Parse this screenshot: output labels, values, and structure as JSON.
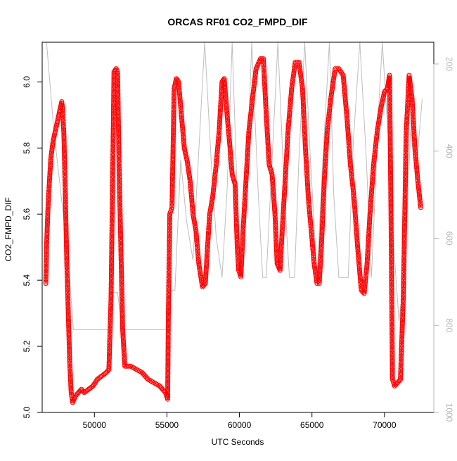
{
  "chart_data": {
    "type": "scatter",
    "title": "ORCAS RF01 CO2_FMPD_DIF",
    "xlabel": "UTC Seconds",
    "ylabel": "CO2_FMPD_DIF",
    "xlim": [
      46400,
      73400
    ],
    "ylim": [
      5.0,
      6.12
    ],
    "y2lim": [
      1000,
      150
    ],
    "x_ticks": [
      50000,
      55000,
      60000,
      65000,
      70000
    ],
    "y_ticks": [
      5.0,
      5.2,
      5.4,
      5.6,
      5.8,
      6.0
    ],
    "y2_ticks": [
      200,
      400,
      600,
      800,
      1000
    ],
    "grid": false,
    "series": [
      {
        "role": "CO2_FMPD_DIF",
        "color": "#ff0000",
        "marker": "open-circle",
        "line": "dash",
        "points": [
          [
            46650,
            5.39
          ],
          [
            46700,
            5.5
          ],
          [
            46800,
            5.62
          ],
          [
            46900,
            5.7
          ],
          [
            47000,
            5.77
          ],
          [
            47150,
            5.82
          ],
          [
            47300,
            5.85
          ],
          [
            47450,
            5.88
          ],
          [
            47600,
            5.91
          ],
          [
            47750,
            5.94
          ],
          [
            47800,
            5.92
          ],
          [
            47900,
            5.84
          ],
          [
            48000,
            5.65
          ],
          [
            48100,
            5.45
          ],
          [
            48200,
            5.3
          ],
          [
            48300,
            5.15
          ],
          [
            48400,
            5.06
          ],
          [
            48500,
            5.03
          ],
          [
            48700,
            5.05
          ],
          [
            48900,
            5.06
          ],
          [
            49100,
            5.07
          ],
          [
            49300,
            5.06
          ],
          [
            49600,
            5.07
          ],
          [
            49900,
            5.08
          ],
          [
            50200,
            5.1
          ],
          [
            50500,
            5.11
          ],
          [
            50800,
            5.12
          ],
          [
            51000,
            5.13
          ],
          [
            51150,
            5.35
          ],
          [
            51300,
            5.85
          ],
          [
            51350,
            6.03
          ],
          [
            51500,
            6.04
          ],
          [
            51600,
            6.03
          ],
          [
            51700,
            5.75
          ],
          [
            51850,
            5.45
          ],
          [
            51950,
            5.25
          ],
          [
            52100,
            5.14
          ],
          [
            52500,
            5.14
          ],
          [
            52900,
            5.13
          ],
          [
            53300,
            5.12
          ],
          [
            53700,
            5.1
          ],
          [
            54100,
            5.09
          ],
          [
            54500,
            5.08
          ],
          [
            54900,
            5.06
          ],
          [
            55050,
            5.04
          ],
          [
            55100,
            5.3
          ],
          [
            55200,
            5.6
          ],
          [
            55350,
            5.62
          ],
          [
            55500,
            5.98
          ],
          [
            55650,
            6.01
          ],
          [
            55800,
            6.0
          ],
          [
            56000,
            5.9
          ],
          [
            56200,
            5.8
          ],
          [
            56400,
            5.76
          ],
          [
            56600,
            5.7
          ],
          [
            56800,
            5.6
          ],
          [
            57000,
            5.55
          ],
          [
            57200,
            5.45
          ],
          [
            57450,
            5.38
          ],
          [
            57650,
            5.39
          ],
          [
            57800,
            5.5
          ],
          [
            57950,
            5.6
          ],
          [
            58150,
            5.65
          ],
          [
            58400,
            5.75
          ],
          [
            58600,
            5.85
          ],
          [
            58800,
            6.0
          ],
          [
            58950,
            6.01
          ],
          [
            59150,
            5.9
          ],
          [
            59350,
            5.8
          ],
          [
            59500,
            5.72
          ],
          [
            59700,
            5.69
          ],
          [
            59850,
            5.5
          ],
          [
            59950,
            5.43
          ],
          [
            60100,
            5.41
          ],
          [
            60250,
            5.55
          ],
          [
            60450,
            5.7
          ],
          [
            60650,
            5.85
          ],
          [
            60900,
            5.95
          ],
          [
            61150,
            6.04
          ],
          [
            61450,
            6.07
          ],
          [
            61650,
            6.07
          ],
          [
            61850,
            5.9
          ],
          [
            62050,
            5.75
          ],
          [
            62250,
            5.72
          ],
          [
            62450,
            5.6
          ],
          [
            62600,
            5.45
          ],
          [
            62800,
            5.43
          ],
          [
            62950,
            5.55
          ],
          [
            63150,
            5.7
          ],
          [
            63350,
            5.85
          ],
          [
            63600,
            5.98
          ],
          [
            63850,
            6.06
          ],
          [
            64100,
            6.06
          ],
          [
            64350,
            5.98
          ],
          [
            64550,
            5.8
          ],
          [
            64750,
            5.65
          ],
          [
            64950,
            5.55
          ],
          [
            65150,
            5.45
          ],
          [
            65350,
            5.39
          ],
          [
            65500,
            5.39
          ],
          [
            65650,
            5.5
          ],
          [
            65850,
            5.7
          ],
          [
            66050,
            5.85
          ],
          [
            66300,
            5.95
          ],
          [
            66600,
            6.04
          ],
          [
            66850,
            6.04
          ],
          [
            67150,
            6.02
          ],
          [
            67400,
            5.9
          ],
          [
            67650,
            5.75
          ],
          [
            67900,
            5.65
          ],
          [
            68150,
            5.5
          ],
          [
            68400,
            5.37
          ],
          [
            68600,
            5.36
          ],
          [
            68800,
            5.45
          ],
          [
            69000,
            5.6
          ],
          [
            69250,
            5.75
          ],
          [
            69500,
            5.85
          ],
          [
            69750,
            5.92
          ],
          [
            70000,
            5.97
          ],
          [
            70200,
            5.98
          ],
          [
            70350,
            6.02
          ],
          [
            70450,
            5.6
          ],
          [
            70550,
            5.1
          ],
          [
            70700,
            5.08
          ],
          [
            70900,
            5.09
          ],
          [
            71100,
            5.1
          ],
          [
            71300,
            5.35
          ],
          [
            71500,
            5.85
          ],
          [
            71700,
            6.02
          ],
          [
            71900,
            5.95
          ],
          [
            72100,
            5.8
          ],
          [
            72300,
            5.7
          ],
          [
            72500,
            5.62
          ]
        ]
      },
      {
        "role": "right-axis",
        "color": "#bebebe",
        "marker": "none",
        "line": "solid",
        "points": [
          [
            46700,
            150
          ],
          [
            47200,
            350
          ],
          [
            47700,
            500
          ],
          [
            48200,
            650
          ],
          [
            48550,
            810
          ],
          [
            49500,
            810
          ],
          [
            51000,
            810
          ],
          [
            51250,
            725
          ],
          [
            51600,
            725
          ],
          [
            51900,
            810
          ],
          [
            53500,
            810
          ],
          [
            55000,
            810
          ],
          [
            55250,
            720
          ],
          [
            55550,
            720
          ],
          [
            55950,
            420
          ],
          [
            56350,
            560
          ],
          [
            56800,
            650
          ],
          [
            57050,
            490
          ],
          [
            57600,
            150
          ],
          [
            58050,
            420
          ],
          [
            58400,
            600
          ],
          [
            58800,
            690
          ],
          [
            59150,
            490
          ],
          [
            59500,
            150
          ],
          [
            59950,
            600
          ],
          [
            60200,
            690
          ],
          [
            60550,
            420
          ],
          [
            60850,
            150
          ],
          [
            61300,
            500
          ],
          [
            61600,
            690
          ],
          [
            61850,
            690
          ],
          [
            62250,
            420
          ],
          [
            62650,
            150
          ],
          [
            63100,
            500
          ],
          [
            63450,
            690
          ],
          [
            63800,
            690
          ],
          [
            64100,
            420
          ],
          [
            64500,
            150
          ],
          [
            64900,
            420
          ],
          [
            65350,
            690
          ],
          [
            65750,
            420
          ],
          [
            66200,
            150
          ],
          [
            66500,
            500
          ],
          [
            66850,
            690
          ],
          [
            67500,
            690
          ],
          [
            67850,
            380
          ],
          [
            68300,
            150
          ],
          [
            68750,
            420
          ],
          [
            69100,
            690
          ],
          [
            69350,
            500
          ],
          [
            69600,
            300
          ],
          [
            69850,
            150
          ],
          [
            70350,
            420
          ],
          [
            70600,
            600
          ],
          [
            71000,
            790
          ],
          [
            71400,
            680
          ],
          [
            71800,
            350
          ],
          [
            72150,
            460
          ],
          [
            72600,
            280
          ]
        ]
      }
    ]
  }
}
